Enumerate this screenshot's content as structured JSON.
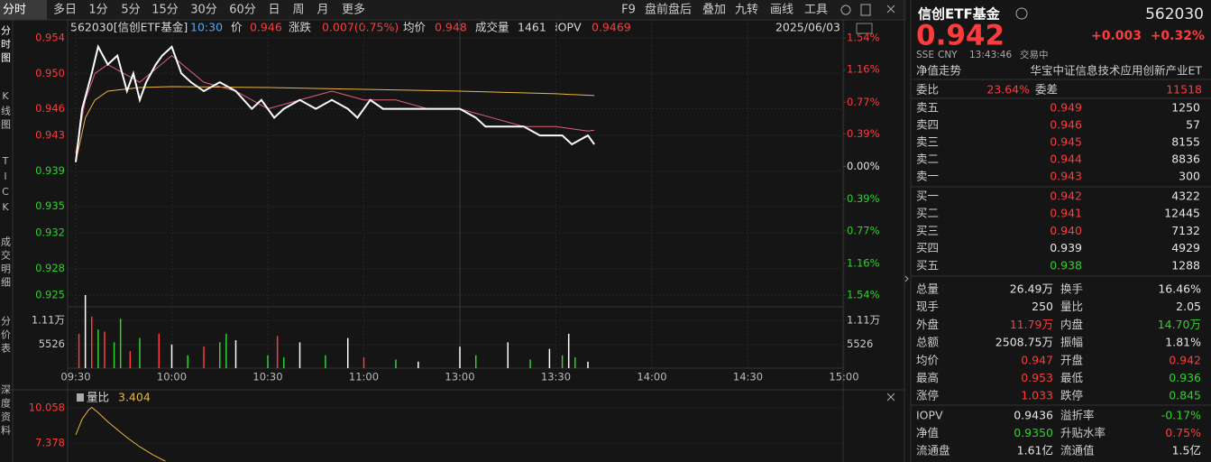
{
  "toolbar": {
    "tabs": [
      "分时",
      "多日",
      "1分",
      "5分",
      "15分",
      "30分",
      "60分",
      "日",
      "周",
      "月",
      "更多"
    ],
    "tools": [
      "F9",
      "盘前盘后",
      "叠加",
      "九转",
      "画线",
      "工具"
    ]
  },
  "side_tabs": [
    "分时图",
    "K线图",
    "TICK",
    "成交明细",
    "分价表",
    "深度资料"
  ],
  "intraday_chart": {
    "header": [
      {
        "text": "562030[信创ETF基金]",
        "color": "#d8d8d8"
      },
      {
        "text": "10:30",
        "color": "#4aa8ff"
      },
      {
        "text": "价",
        "color": "#d8d8d8"
      },
      {
        "text": "0.946",
        "color": "#ff3b3b"
      },
      {
        "text": "涨跌",
        "color": "#d8d8d8"
      },
      {
        "text": "0.007(0.75%)",
        "color": "#ff3b3b"
      },
      {
        "text": "均价",
        "color": "#d8d8d8"
      },
      {
        "text": "0.948",
        "color": "#ff3b3b"
      },
      {
        "text": "成交量",
        "color": "#d8d8d8"
      },
      {
        "text": "1461",
        "color": "#d8d8d8"
      },
      {
        "text": "IOPV",
        "color": "#d8d8d8"
      },
      {
        "text": "0.9469",
        "color": "#ff3b3b"
      }
    ],
    "date": "2025/06/03",
    "xlim": [
      0,
      240
    ],
    "xticks": [
      {
        "value": 0,
        "label": "09:30"
      },
      {
        "value": 30,
        "label": "10:00"
      },
      {
        "value": 60,
        "label": "10:30"
      },
      {
        "value": 90,
        "label": "11:00"
      },
      {
        "value": 120,
        "label": "13:00"
      },
      {
        "value": 150,
        "label": "13:30"
      },
      {
        "value": 180,
        "label": "14:00"
      },
      {
        "value": 210,
        "label": "14:30"
      },
      {
        "value": 240,
        "label": "15:00"
      }
    ],
    "ylim": [
      0.925,
      0.954
    ],
    "yticks": [
      0.954,
      {
        "value": 0.95,
        "label": "0.950"
      },
      0.946,
      0.943,
      0.939,
      0.935,
      0.932,
      0.928,
      0.925
    ],
    "y2lim": [
      -1.54,
      1.54
    ],
    "y2ticks": [
      {
        "value": 1.54,
        "label": "1.54%"
      },
      {
        "value": 1.16,
        "label": "1.16%"
      },
      {
        "value": 0.77,
        "label": "0.77%"
      },
      {
        "value": 0.39,
        "label": "0.39%"
      },
      {
        "value": 0,
        "label": "0.00%"
      },
      {
        "value": -0.39,
        "label": "0.39%"
      },
      {
        "value": -0.77,
        "label": "0.77%"
      },
      {
        "value": -1.16,
        "label": "1.16%"
      },
      {
        "value": -1.54,
        "label": "1.54%"
      }
    ],
    "series": [
      {
        "color": "#e9b640",
        "x": [
          0,
          3,
          6,
          10,
          20,
          30,
          60,
          90,
          120,
          150,
          162
        ],
        "values": [
          0.94,
          0.945,
          0.947,
          0.948,
          0.9484,
          0.9485,
          0.9484,
          0.9482,
          0.948,
          0.9477,
          0.9475
        ]
      },
      {
        "color": "#e0607a",
        "x": [
          0,
          3,
          6,
          10,
          15,
          20,
          30,
          40,
          50,
          60,
          70,
          80,
          90,
          100,
          110,
          120,
          130,
          140,
          150,
          160,
          162
        ],
        "values": [
          0.941,
          0.947,
          0.95,
          0.951,
          0.95,
          0.949,
          0.952,
          0.949,
          0.948,
          0.946,
          0.947,
          0.948,
          0.947,
          0.947,
          0.946,
          0.946,
          0.945,
          0.944,
          0.944,
          0.9435,
          0.9436
        ]
      },
      {
        "color": "#ffffff",
        "x": [
          0,
          2,
          5,
          7,
          10,
          13,
          16,
          18,
          20,
          22,
          25,
          27,
          30,
          33,
          36,
          40,
          45,
          50,
          55,
          58,
          62,
          65,
          70,
          75,
          80,
          85,
          88,
          92,
          96,
          100,
          105,
          110,
          115,
          120,
          125,
          128,
          132,
          136,
          140,
          145,
          148,
          152,
          155,
          160,
          162
        ],
        "values": [
          0.94,
          0.946,
          0.95,
          0.953,
          0.951,
          0.952,
          0.948,
          0.95,
          0.947,
          0.949,
          0.951,
          0.952,
          0.953,
          0.95,
          0.949,
          0.948,
          0.949,
          0.948,
          0.946,
          0.947,
          0.945,
          0.946,
          0.947,
          0.946,
          0.947,
          0.946,
          0.945,
          0.947,
          0.946,
          0.946,
          0.946,
          0.946,
          0.946,
          0.946,
          0.945,
          0.944,
          0.944,
          0.944,
          0.944,
          0.943,
          0.943,
          0.943,
          0.942,
          0.943,
          0.942
        ]
      }
    ]
  },
  "volume_chart": {
    "ylim": [
      0,
      17000
    ],
    "yticks": [
      {
        "value": 11100,
        "label": "1.11万"
      },
      5526
    ],
    "x": [
      1,
      3,
      5,
      7,
      9,
      12,
      14,
      17,
      20,
      26,
      30,
      35,
      40,
      45,
      47,
      50,
      60,
      63,
      65,
      70,
      78,
      85,
      90,
      100,
      107,
      120,
      125,
      135,
      142,
      148,
      152,
      154,
      156,
      160
    ],
    "values": [
      8000,
      17000,
      12000,
      9000,
      8500,
      6000,
      11500,
      4000,
      7000,
      8000,
      5500,
      3000,
      5000,
      6000,
      8000,
      6500,
      3000,
      7500,
      2500,
      6000,
      3000,
      7000,
      2500,
      2000,
      1500,
      5000,
      3000,
      6000,
      2000,
      4500,
      3000,
      8000,
      2500,
      1500
    ],
    "colors": [
      "#ff3b3b",
      "#ffffff",
      "#ff3b3b",
      "#2fd12f",
      "#ff3b3b",
      "#2fd12f",
      "#2fd12f",
      "#ff3b3b",
      "#2fd12f",
      "#ff3b3b",
      "#ffffff",
      "#2fd12f",
      "#ff3b3b",
      "#2fd12f",
      "#2fd12f",
      "#ffffff",
      "#2fd12f",
      "#ff3b3b",
      "#2fd12f",
      "#ffffff",
      "#2fd12f",
      "#ffffff",
      "#ff3b3b",
      "#2fd12f",
      "#ffffff",
      "#ffffff",
      "#2fd12f",
      "#ffffff",
      "#2fd12f",
      "#ffffff",
      "#2fd12f",
      "#ffffff",
      "#2fd12f",
      "#ffffff"
    ]
  },
  "ratio_chart": {
    "label": "量比",
    "value": "3.404",
    "ylim": [
      5.94,
      10.47
    ],
    "yticks": [
      10.058,
      7.378
    ],
    "color": "#e9b640",
    "x": [
      0,
      2,
      4,
      5,
      7,
      10,
      13,
      16,
      20,
      24,
      28
    ],
    "values": [
      8.0,
      9.2,
      9.9,
      10.1,
      9.7,
      9.0,
      8.4,
      7.8,
      7.1,
      6.5,
      6.0
    ]
  },
  "quote": {
    "name": "信创ETF基金",
    "code": "562030",
    "price": "0.942",
    "change": "+0.003",
    "change_pct": "+0.32%",
    "exchange": "SSE",
    "currency": "CNY",
    "time": "13:43:46",
    "status": "交易中",
    "nav_trend": "净值走势",
    "index_name": "华宝中证信息技术应用创新产业ET"
  },
  "order_ratio": [
    {
      "label": "委比",
      "value": "23.64%",
      "color": "#ff3b3b"
    },
    {
      "label": "委差",
      "value": "11518",
      "color": "#ff3b3b"
    }
  ],
  "order_book": [
    {
      "label": "卖五",
      "price": "0.949",
      "volume": "1250",
      "color": "#ff3b3b"
    },
    {
      "label": "卖四",
      "price": "0.946",
      "volume": "57",
      "color": "#ff3b3b"
    },
    {
      "label": "卖三",
      "price": "0.945",
      "volume": "8155",
      "color": "#ff3b3b"
    },
    {
      "label": "卖二",
      "price": "0.944",
      "volume": "8836",
      "color": "#ff3b3b"
    },
    {
      "label": "卖一",
      "price": "0.943",
      "volume": "300",
      "color": "#ff3b3b"
    },
    {
      "label": "买一",
      "price": "0.942",
      "volume": "4322",
      "color": "#ff3b3b"
    },
    {
      "label": "买二",
      "price": "0.941",
      "volume": "12445",
      "color": "#ff3b3b"
    },
    {
      "label": "买三",
      "price": "0.940",
      "volume": "7132",
      "color": "#ff3b3b"
    },
    {
      "label": "买四",
      "price": "0.939",
      "volume": "4929",
      "color": "#e6e6e6"
    },
    {
      "label": "买五",
      "price": "0.938",
      "volume": "1288",
      "color": "#2fd12f"
    }
  ],
  "stats": [
    [
      {
        "label": "总量",
        "value": "26.49万",
        "color": "#e6e6e6"
      },
      {
        "label": "换手",
        "value": "16.46%",
        "color": "#e6e6e6"
      }
    ],
    [
      {
        "label": "现手",
        "value": "250",
        "color": "#e6e6e6"
      },
      {
        "label": "量比",
        "value": "2.05",
        "color": "#e6e6e6"
      }
    ],
    [
      {
        "label": "外盘",
        "value": "11.79万",
        "color": "#ff3b3b"
      },
      {
        "label": "内盘",
        "value": "14.70万",
        "color": "#2fd12f"
      }
    ],
    [
      {
        "label": "总额",
        "value": "2508.75万",
        "color": "#e6e6e6"
      },
      {
        "label": "振幅",
        "value": "1.81%",
        "color": "#e6e6e6"
      }
    ],
    [
      {
        "label": "均价",
        "value": "0.947",
        "color": "#ff3b3b"
      },
      {
        "label": "开盘",
        "value": "0.942",
        "color": "#ff3b3b"
      }
    ],
    [
      {
        "label": "最高",
        "value": "0.953",
        "color": "#ff3b3b"
      },
      {
        "label": "最低",
        "value": "0.936",
        "color": "#2fd12f"
      }
    ],
    [
      {
        "label": "涨停",
        "value": "1.033",
        "color": "#ff3b3b"
      },
      {
        "label": "跌停",
        "value": "0.845",
        "color": "#2fd12f"
      }
    ]
  ],
  "fund_stats": [
    [
      {
        "label": "IOPV",
        "value": "0.9436",
        "color": "#e6e6e6"
      },
      {
        "label": "溢折率",
        "value": "-0.17%",
        "color": "#2fd12f"
      }
    ],
    [
      {
        "label": "净值",
        "value": "0.9350",
        "color": "#2fd12f"
      },
      {
        "label": "升贴水率",
        "value": "0.75%",
        "color": "#ff3b3b"
      }
    ],
    [
      {
        "label": "流通盘",
        "value": "1.61亿",
        "color": "#e6e6e6"
      },
      {
        "label": "流通值",
        "value": "1.5亿",
        "color": "#e6e6e6"
      }
    ]
  ]
}
